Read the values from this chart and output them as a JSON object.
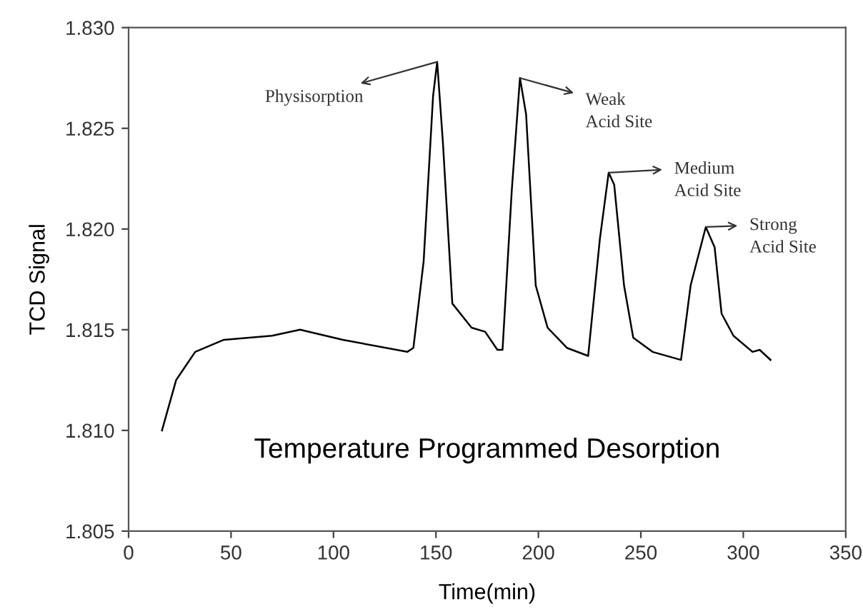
{
  "chart_data": {
    "type": "line",
    "title": "Temperature Programmed Desorption",
    "xlabel": "Time(min)",
    "ylabel": "TCD Signal",
    "x": [
      16.3,
      23.2,
      32.5,
      46.5,
      70,
      83.7,
      104.6,
      136,
      139,
      144,
      148.6,
      150.6,
      153.4,
      158,
      167.4,
      174,
      180,
      182.5,
      187,
      191,
      194,
      198.7,
      204.5,
      213.9,
      224.3,
      230,
      234.3,
      237,
      241.8,
      246.3,
      255.7,
      269.6,
      274.3,
      281.7,
      286,
      289.4,
      295.2,
      304.5,
      308,
      313.3
    ],
    "series": [
      {
        "color": "#000000",
        "values": [
          1.81,
          1.8125,
          1.8139,
          1.8145,
          1.8147,
          1.815,
          1.8145,
          1.8139,
          1.8141,
          1.8184,
          1.8266,
          1.8283,
          1.8243,
          1.8163,
          1.8151,
          1.8149,
          1.814,
          1.814,
          1.8219,
          1.8275,
          1.8257,
          1.8172,
          1.8151,
          1.8141,
          1.8137,
          1.8195,
          1.8228,
          1.8222,
          1.8172,
          1.8146,
          1.8139,
          1.8135,
          1.8172,
          1.8201,
          1.8191,
          1.8158,
          1.8147,
          1.8139,
          1.814,
          1.8135
        ]
      }
    ],
    "annotations": [
      {
        "text": "Physisorption",
        "x": 150.6,
        "y": 1.8283
      },
      {
        "text": "Weak\nAcid Site",
        "x": 191,
        "y": 1.8275
      },
      {
        "text": "Medium\nAcid Site",
        "x": 234.3,
        "y": 1.8228
      },
      {
        "text": "Strong\nAcid Site",
        "x": 281.7,
        "y": 1.8201
      }
    ],
    "xlim": [
      0,
      350
    ],
    "xticks": [
      0,
      50,
      100,
      150,
      200,
      250,
      300,
      350
    ],
    "ylim": [
      1.805,
      1.83
    ],
    "yticks": [
      {
        "value": 1.805,
        "label": "1.805"
      },
      {
        "value": 1.81,
        "label": "1.810"
      },
      {
        "value": 1.815,
        "label": "1.815"
      },
      {
        "value": 1.82,
        "label": "1.820"
      },
      {
        "value": 1.825,
        "label": "1.825"
      },
      {
        "value": 1.83,
        "label": "1.830"
      }
    ],
    "grid": false,
    "legend": false,
    "marker": "none",
    "line_style": "solid"
  }
}
